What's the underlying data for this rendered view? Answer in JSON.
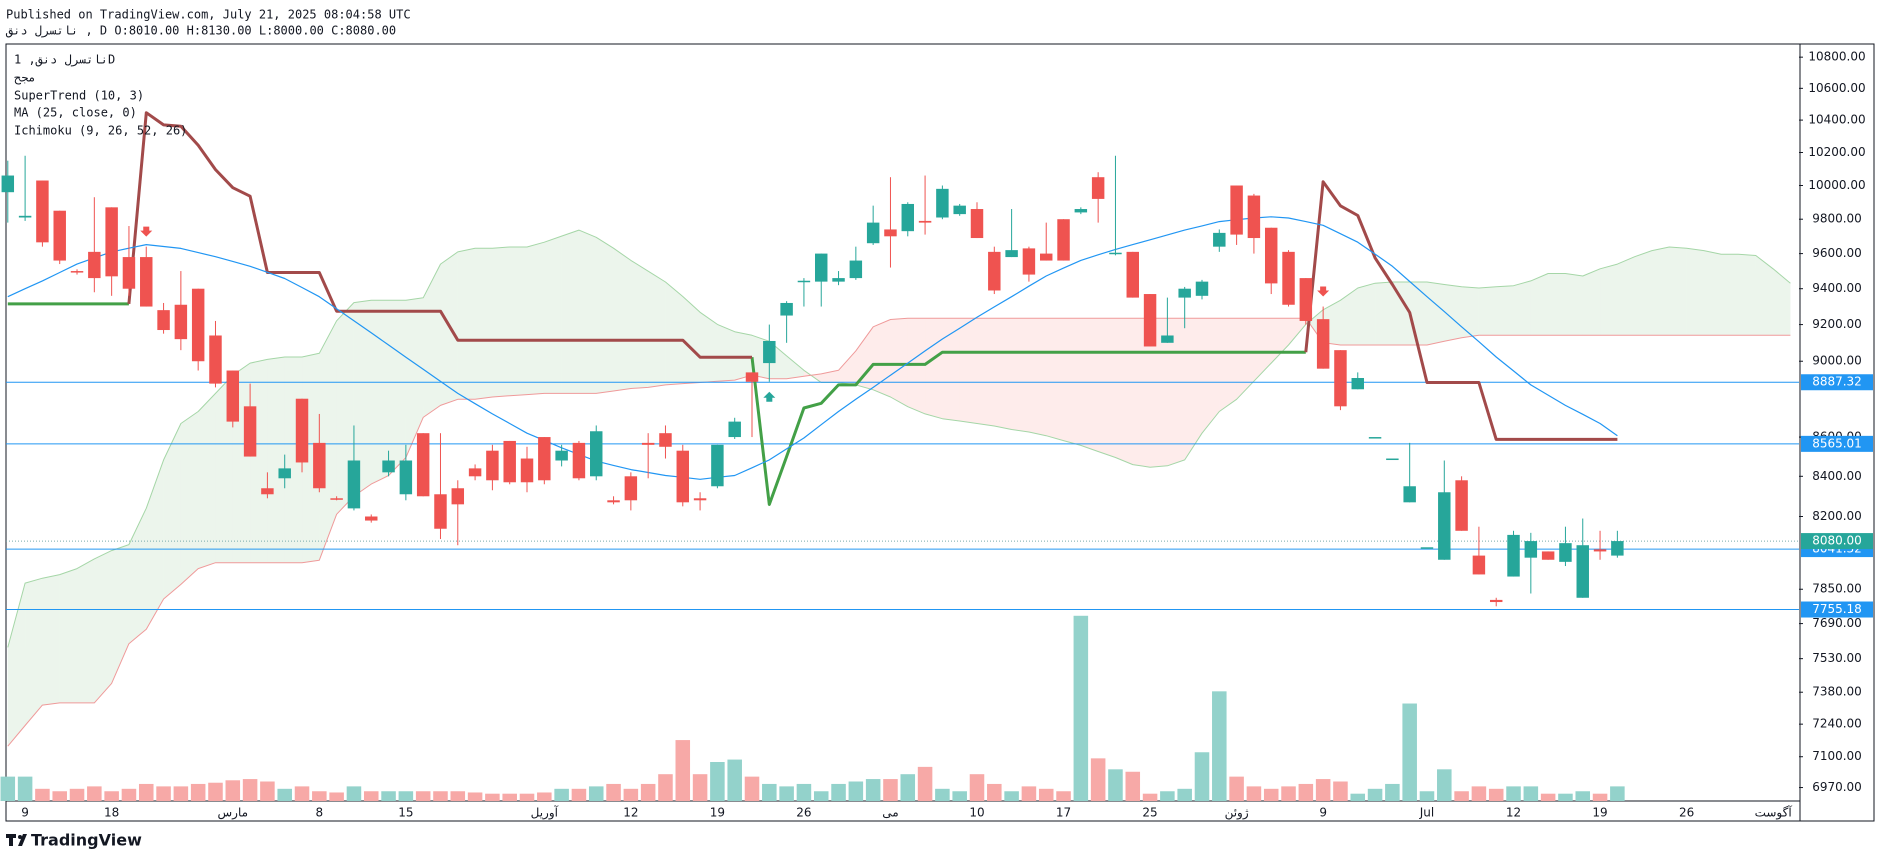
{
  "chart_data": {
    "type": "candlestick",
    "published": "Published on TradingView.com, July 21, 2025 08:04:58 UTC",
    "ohlc_line": "ناتسرل دنق , D O:8010.00 H:8130.00 L:8000.00 C:8080.00",
    "symbol_legend": "ناتسرل دنق, 1D",
    "brand": "TradingView",
    "log_scale": true,
    "grid": false,
    "ylim": [
      6914,
      10879
    ],
    "yticks": [
      {
        "value": 10800,
        "label": "10800.00"
      },
      {
        "value": 10600,
        "label": "10600.00"
      },
      {
        "value": 10400,
        "label": "10400.00"
      },
      {
        "value": 10200,
        "label": "10200.00"
      },
      {
        "value": 10000,
        "label": "10000.00"
      },
      {
        "value": 9800,
        "label": "9800.00"
      },
      {
        "value": 9600,
        "label": "9600.00"
      },
      {
        "value": 9400,
        "label": "9400.00"
      },
      {
        "value": 9200,
        "label": "9200.00"
      },
      {
        "value": 9000,
        "label": "9000.00"
      },
      {
        "value": 8600,
        "label": "8600.00"
      },
      {
        "value": 8400,
        "label": "8400.00"
      },
      {
        "value": 8200,
        "label": "8200.00"
      },
      {
        "value": 7850,
        "label": "7850.00"
      },
      {
        "value": 7690,
        "label": "7690.00"
      },
      {
        "value": 7530,
        "label": "7530.00"
      },
      {
        "value": 7380,
        "label": "7380.00"
      },
      {
        "value": 7240,
        "label": "7240.00"
      },
      {
        "value": 7100,
        "label": "7100.00"
      },
      {
        "value": 6970,
        "label": "6970.00"
      }
    ],
    "categories": [
      null,
      "9",
      null,
      null,
      null,
      null,
      "18",
      null,
      null,
      null,
      null,
      null,
      null,
      "مارس",
      null,
      null,
      null,
      null,
      "8",
      null,
      null,
      null,
      null,
      "15",
      null,
      null,
      null,
      null,
      null,
      null,
      null,
      "آوریل",
      null,
      null,
      null,
      null,
      "12",
      null,
      null,
      null,
      null,
      "19",
      null,
      null,
      null,
      null,
      "26",
      null,
      null,
      null,
      null,
      "می",
      null,
      null,
      null,
      null,
      "10",
      null,
      null,
      null,
      null,
      "17",
      null,
      null,
      null,
      null,
      "25",
      null,
      null,
      null,
      null,
      "ژوئن",
      null,
      null,
      null,
      null,
      "9",
      null,
      null,
      null,
      null,
      null,
      "Jul",
      null,
      null,
      null,
      null,
      "12",
      null,
      null,
      null,
      null,
      "19",
      null,
      null,
      null,
      null,
      "26",
      null,
      null,
      null,
      null,
      "آگوست",
      null
    ],
    "up_color": "#26a69a",
    "down_color": "#ef5350",
    "open": [
      9960,
      9810,
      10030,
      9850,
      9500,
      9610,
      9870,
      9580,
      9580,
      9280,
      9310,
      9400,
      9140,
      8950,
      8760,
      8340,
      8390,
      8800,
      8570,
      8290,
      8240,
      8200,
      8420,
      8310,
      8620,
      8310,
      8340,
      8440,
      8530,
      8580,
      8490,
      8600,
      8480,
      8570,
      8400,
      8280,
      8400,
      8570,
      8620,
      8530,
      8290,
      8350,
      8600,
      8940,
      8990,
      9250,
      9440,
      9440,
      9440,
      9460,
      9660,
      9740,
      9730,
      9790,
      9810,
      9830,
      9860,
      9610,
      9580,
      9630,
      9600,
      9800,
      9840,
      10050,
      9600,
      9610,
      9370,
      9100,
      9350,
      9360,
      9640,
      10000,
      9940,
      9750,
      9610,
      9460,
      9230,
      9060,
      8850,
      8600,
      8490,
      8270,
      8050,
      7990,
      8380,
      8010,
      7800,
      7910,
      8000,
      8030,
      7980,
      7810,
      8040,
      8010,
      null,
      null,
      null,
      null,
      null,
      null,
      null,
      null,
      null,
      null
    ],
    "high": [
      10150,
      10180,
      10030,
      9850,
      9510,
      9930,
      9870,
      9760,
      9640,
      9320,
      9500,
      9400,
      9220,
      8950,
      8880,
      8420,
      8510,
      8800,
      8720,
      8300,
      8660,
      8210,
      8530,
      8560,
      8620,
      8620,
      8380,
      8460,
      8560,
      8580,
      8550,
      8600,
      8560,
      8580,
      8660,
      8300,
      8420,
      8620,
      8660,
      8560,
      8320,
      8560,
      8700,
      8940,
      9200,
      9330,
      9460,
      9600,
      9500,
      9640,
      9880,
      10050,
      9900,
      10060,
      10000,
      9890,
      9900,
      9640,
      9860,
      9640,
      9780,
      9800,
      9870,
      10080,
      10180,
      9610,
      9370,
      9350,
      9410,
      9450,
      9740,
      10000,
      9950,
      9750,
      9620,
      9460,
      9300,
      9060,
      8940,
      8600,
      8490,
      8570,
      8050,
      8480,
      8400,
      8150,
      7810,
      8130,
      8120,
      8030,
      8150,
      8190,
      8130,
      8130,
      null,
      null,
      null,
      null,
      null,
      null,
      null,
      null,
      null,
      null
    ],
    "low": [
      9780,
      9790,
      9640,
      9540,
      9480,
      9380,
      9360,
      9360,
      9300,
      9150,
      9060,
      8950,
      8860,
      8650,
      8500,
      8290,
      8340,
      8420,
      8320,
      8280,
      8230,
      8170,
      8400,
      8280,
      8300,
      8090,
      8060,
      8380,
      8330,
      8360,
      8320,
      8360,
      8450,
      8380,
      8380,
      8260,
      8230,
      8390,
      8490,
      8250,
      8230,
      8340,
      8590,
      8600,
      8890,
      9100,
      9300,
      9300,
      9420,
      9450,
      9650,
      9520,
      9700,
      9710,
      9800,
      9820,
      9690,
      9370,
      9580,
      9440,
      9560,
      9560,
      9830,
      9780,
      9590,
      9350,
      9080,
      9100,
      9180,
      9340,
      9610,
      9650,
      9600,
      9370,
      9300,
      9200,
      8960,
      8740,
      8850,
      8600,
      8490,
      8270,
      8050,
      7990,
      8130,
      7920,
      7770,
      7910,
      7830,
      7990,
      7960,
      7810,
      7990,
      8000,
      null,
      null,
      null,
      null,
      null,
      null,
      null,
      null,
      null,
      null
    ],
    "close": [
      10060,
      9820,
      9665,
      9560,
      9495,
      9460,
      9470,
      9400,
      9300,
      9170,
      9120,
      9000,
      8880,
      8680,
      8500,
      8310,
      8440,
      8470,
      8340,
      8285,
      8480,
      8180,
      8480,
      8480,
      8300,
      8140,
      8260,
      8400,
      8380,
      8370,
      8370,
      8380,
      8530,
      8390,
      8630,
      8270,
      8280,
      8560,
      8550,
      8270,
      8280,
      8560,
      8680,
      8890,
      9110,
      9320,
      9445,
      9600,
      9460,
      9560,
      9780,
      9700,
      9890,
      9780,
      9980,
      9880,
      9690,
      9390,
      9620,
      9480,
      9560,
      9560,
      9860,
      9920,
      9605,
      9350,
      9080,
      9140,
      9400,
      9440,
      9720,
      9710,
      9690,
      9430,
      9310,
      9220,
      8960,
      8760,
      8910,
      8600,
      8490,
      8350,
      8050,
      8320,
      8130,
      7920,
      7790,
      8110,
      8080,
      7990,
      8070,
      8060,
      8030,
      8080,
      null,
      null,
      null,
      null,
      null,
      null,
      null,
      null,
      null,
      null
    ],
    "volume": {
      "name": "مجح",
      "up_color": "#93d2cb",
      "down_color": "#f7a9a7",
      "values": [
        20,
        20,
        10,
        8,
        10,
        12,
        8,
        10,
        14,
        12,
        12,
        14,
        15,
        17,
        18,
        16,
        10,
        12,
        8,
        7,
        12,
        8,
        8,
        8,
        8,
        8,
        8,
        7,
        6,
        6,
        6,
        7,
        10,
        10,
        12,
        14,
        10,
        14,
        22,
        50,
        22,
        32,
        34,
        20,
        14,
        12,
        14,
        8,
        14,
        16,
        18,
        18,
        22,
        28,
        10,
        8,
        22,
        14,
        8,
        12,
        10,
        8,
        152,
        35,
        26,
        24,
        6,
        8,
        10,
        40,
        90,
        20,
        12,
        10,
        12,
        14,
        18,
        16,
        6,
        10,
        14,
        80,
        8,
        26,
        8,
        12,
        10,
        12,
        12,
        6,
        6,
        8,
        6,
        12,
        null,
        null,
        null,
        null,
        null,
        null,
        null,
        null,
        null,
        null
      ]
    },
    "supertrend": {
      "name": "SuperTrend (10, 3)",
      "up_color": "#43a047",
      "down_color": "#a24a4a",
      "up": [
        9315,
        9315,
        9315,
        9315,
        9315,
        9315,
        9315,
        9315,
        null,
        null,
        null,
        null,
        null,
        null,
        null,
        null,
        null,
        null,
        null,
        null,
        null,
        null,
        null,
        null,
        null,
        null,
        null,
        null,
        null,
        null,
        null,
        null,
        null,
        null,
        null,
        null,
        null,
        null,
        null,
        null,
        null,
        null,
        null,
        9022,
        8259,
        8500,
        8751,
        8776,
        8873,
        8873,
        8983,
        8983,
        8983,
        8983,
        9049,
        9049,
        9049,
        9049,
        9049,
        9049,
        9049,
        9049,
        9049,
        9049,
        9049,
        9049,
        9049,
        9049,
        9049,
        9049,
        9049,
        9049,
        9049,
        9049,
        9049,
        9049,
        null,
        null,
        null,
        null,
        null,
        null,
        null,
        null,
        null,
        null,
        null,
        null,
        null,
        null,
        null,
        null,
        null,
        null,
        null,
        null,
        null,
        null,
        null,
        null,
        null,
        null,
        null,
        null
      ],
      "down": [
        null,
        null,
        null,
        null,
        null,
        null,
        null,
        9315,
        10446,
        10370,
        10362,
        10244,
        10096,
        9987,
        9936,
        9492,
        9492,
        9492,
        9492,
        9274,
        9274,
        9274,
        9274,
        9274,
        9274,
        9274,
        9114,
        9114,
        9114,
        9114,
        9114,
        9114,
        9114,
        9114,
        9114,
        9114,
        9114,
        9114,
        9114,
        9114,
        9022,
        9022,
        9022,
        9022,
        null,
        null,
        null,
        null,
        null,
        null,
        null,
        null,
        null,
        null,
        null,
        null,
        null,
        null,
        null,
        null,
        null,
        null,
        null,
        null,
        null,
        null,
        null,
        null,
        null,
        null,
        null,
        null,
        null,
        null,
        null,
        9049,
        10022,
        9879,
        9822,
        9575,
        9424,
        9267,
        8886,
        8886,
        8886,
        8886,
        8588,
        8588,
        8588,
        8588,
        8588,
        8588,
        8588,
        8588,
        null,
        null,
        null,
        null,
        null,
        null,
        null,
        null,
        null,
        null
      ]
    },
    "ma": {
      "name": "MA (25, close, 0)",
      "color": "#2196f3",
      "values": [
        9355,
        9400,
        9444,
        9492,
        9540,
        9575,
        9610,
        9631,
        9652,
        9641,
        9630,
        9606,
        9582,
        9555,
        9527,
        9493,
        9458,
        9407,
        9355,
        9288,
        9221,
        9155,
        9088,
        9022,
        8957,
        8892,
        8828,
        8774,
        8720,
        8670,
        8620,
        8583,
        8545,
        8511,
        8477,
        8455,
        8434,
        8419,
        8404,
        8395,
        8385,
        8395,
        8404,
        8443,
        8483,
        8539,
        8595,
        8664,
        8733,
        8797,
        8860,
        8925,
        8990,
        9056,
        9121,
        9180,
        9240,
        9298,
        9355,
        9414,
        9472,
        9517,
        9561,
        9593,
        9624,
        9652,
        9680,
        9708,
        9736,
        9761,
        9786,
        9797,
        9807,
        9814,
        9807,
        9786,
        9764,
        9715,
        9666,
        9597,
        9527,
        9441,
        9355,
        9272,
        9188,
        9106,
        9023,
        8948,
        8873,
        8819,
        8765,
        8718,
        8670,
        8607,
        null,
        null,
        null,
        null,
        null,
        null,
        null,
        null,
        null,
        null
      ]
    },
    "ichimoku": {
      "name": "Ichimoku (9, 26, 52, 26)",
      "span_a_color": "#a5d6a7",
      "span_b_color": "#ef9a9a",
      "fill_up": "rgba(67,160,71,0.1)",
      "fill_down": "rgba(244,67,54,0.1)",
      "span_a": [
        7581,
        7879,
        7902,
        7919,
        7948,
        7994,
        8034,
        8063,
        8241,
        8483,
        8670,
        8733,
        8828,
        8925,
        8990,
        9010,
        9023,
        9023,
        9043,
        9221,
        9322,
        9335,
        9335,
        9335,
        9349,
        9540,
        9610,
        9631,
        9631,
        9638,
        9638,
        9666,
        9701,
        9736,
        9694,
        9631,
        9561,
        9499,
        9438,
        9356,
        9268,
        9201,
        9161,
        9141,
        9108,
        9029,
        8951,
        8886,
        8886,
        8873,
        8847,
        8809,
        8758,
        8720,
        8695,
        8683,
        8670,
        8657,
        8639,
        8626,
        8607,
        8582,
        8557,
        8526,
        8495,
        8459,
        8446,
        8453,
        8483,
        8620,
        8733,
        8797,
        8893,
        8990,
        9088,
        9201,
        9282,
        9335,
        9404,
        9431,
        9438,
        9438,
        9438,
        9424,
        9411,
        9404,
        9411,
        9417,
        9444,
        9486,
        9486,
        9472,
        9513,
        9540,
        9582,
        9617,
        9638,
        9631,
        9617,
        9596,
        9596,
        9589,
        9513,
        9431
      ],
      "span_b": [
        7145,
        7234,
        7323,
        7333,
        7333,
        7333,
        7419,
        7598,
        7664,
        7804,
        7873,
        7948,
        7976,
        7976,
        7976,
        7976,
        7976,
        7976,
        7988,
        8211,
        8301,
        8361,
        8404,
        8495,
        8702,
        8765,
        8797,
        8797,
        8809,
        8816,
        8822,
        8828,
        8828,
        8828,
        8828,
        8841,
        8854,
        8860,
        8873,
        8880,
        8886,
        8893,
        8899,
        8925,
        8906,
        8906,
        8919,
        8932,
        8951,
        9056,
        9188,
        9228,
        9235,
        9235,
        9235,
        9235,
        9235,
        9235,
        9235,
        9235,
        9235,
        9235,
        9235,
        9235,
        9235,
        9235,
        9235,
        9235,
        9235,
        9235,
        9235,
        9235,
        9235,
        9235,
        9235,
        9235,
        9101,
        9088,
        9088,
        9088,
        9088,
        9088,
        9088,
        9108,
        9128,
        9141,
        9141,
        9141,
        9141,
        9141,
        9141,
        9141,
        9141,
        9141,
        9141,
        9141,
        9141,
        9141,
        9141,
        9141,
        9141,
        9141,
        9141,
        9141
      ]
    },
    "levels": {
      "color": "#2196f3",
      "values": [
        8887.32,
        8565.01,
        8041.32,
        7755.18
      ]
    },
    "last_price": {
      "value": 8080,
      "label": "8080.00",
      "color": "#26a69a"
    }
  }
}
